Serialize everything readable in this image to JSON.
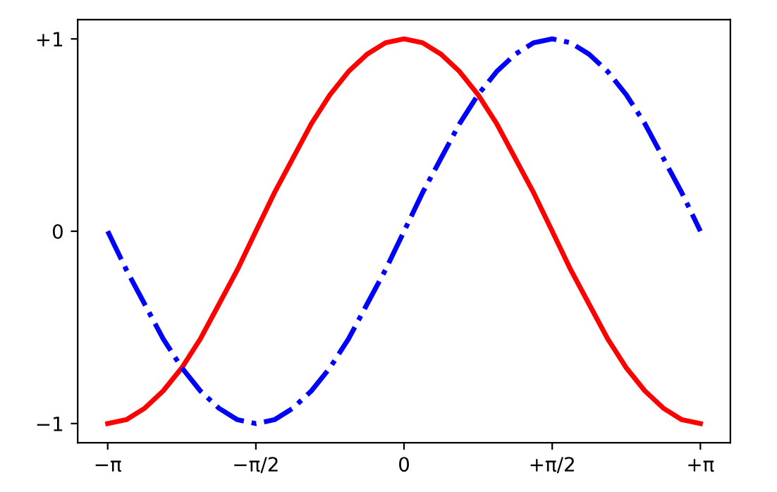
{
  "chart_data": {
    "type": "line",
    "x": [
      -3.142,
      -2.945,
      -2.749,
      -2.553,
      -2.356,
      -2.16,
      -1.963,
      -1.767,
      -1.571,
      -1.374,
      -1.178,
      -0.982,
      -0.785,
      -0.589,
      -0.393,
      -0.196,
      0,
      0.196,
      0.393,
      0.589,
      0.785,
      0.982,
      1.178,
      1.374,
      1.571,
      1.767,
      1.963,
      2.16,
      2.356,
      2.553,
      2.749,
      2.945,
      3.142
    ],
    "series": [
      {
        "color": "#ff0000",
        "line_style": "solid",
        "values": [
          -1,
          -0.98,
          -0.92,
          -0.83,
          -0.71,
          -0.56,
          -0.38,
          -0.2,
          0,
          0.2,
          0.38,
          0.56,
          0.71,
          0.83,
          0.92,
          0.98,
          1,
          0.98,
          0.92,
          0.83,
          0.71,
          0.56,
          0.38,
          0.2,
          0,
          -0.2,
          -0.38,
          -0.56,
          -0.71,
          -0.83,
          -0.92,
          -0.98,
          -1
        ]
      },
      {
        "color": "#0000ff",
        "line_style": "dashdot",
        "values": [
          0,
          -0.2,
          -0.38,
          -0.56,
          -0.71,
          -0.83,
          -0.92,
          -0.98,
          -1,
          -0.98,
          -0.92,
          -0.83,
          -0.71,
          -0.56,
          -0.38,
          -0.2,
          0,
          0.2,
          0.38,
          0.56,
          0.71,
          0.83,
          0.92,
          0.98,
          1,
          0.98,
          0.92,
          0.83,
          0.71,
          0.56,
          0.38,
          0.2,
          0
        ]
      }
    ],
    "xlim": [
      -3.46,
      3.46
    ],
    "ylim": [
      -1.1,
      1.1
    ],
    "xticks": [
      {
        "value": -3.142,
        "label": "−π"
      },
      {
        "value": -1.571,
        "label": "−π/2"
      },
      {
        "value": 0,
        "label": "0"
      },
      {
        "value": 1.571,
        "label": "+π/2"
      },
      {
        "value": 3.142,
        "label": "+π"
      }
    ],
    "yticks": [
      {
        "value": -1,
        "label": "−1"
      },
      0,
      {
        "value": 1,
        "label": "+1"
      }
    ],
    "grid": false,
    "legend": false,
    "marker": "none"
  }
}
